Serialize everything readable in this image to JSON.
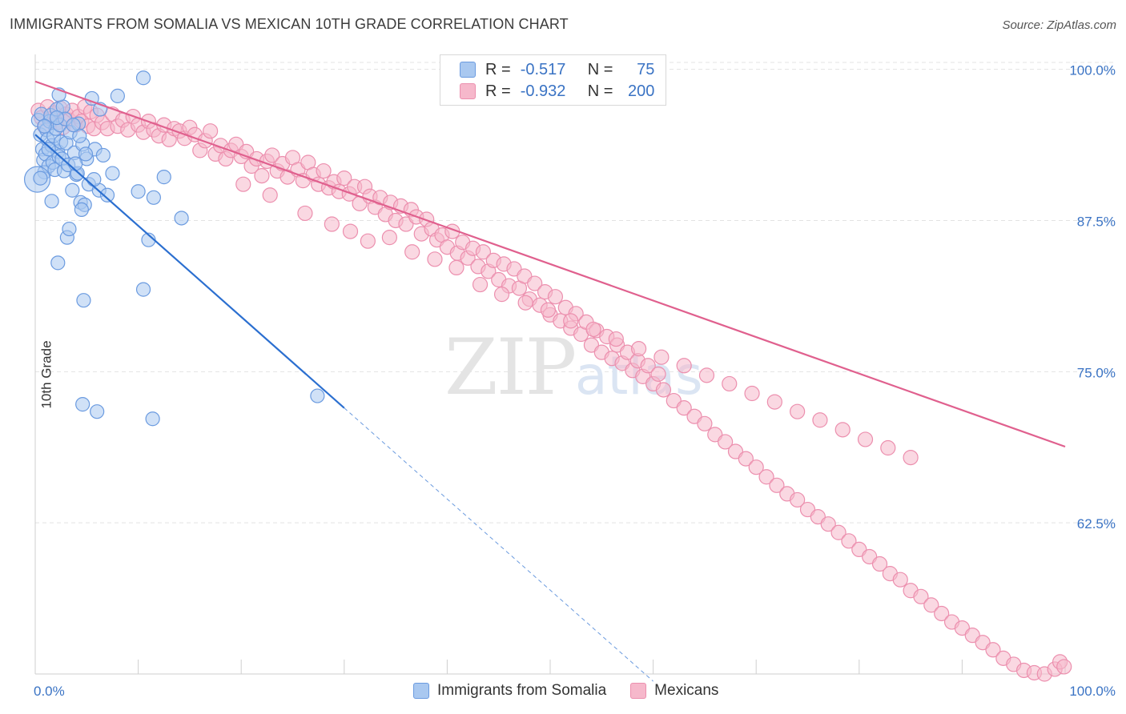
{
  "header": {
    "title": "IMMIGRANTS FROM SOMALIA VS MEXICAN 10TH GRADE CORRELATION CHART",
    "source": "Source: ZipAtlas.com"
  },
  "colors": {
    "blue_fill": "#a9c8f0",
    "blue_stroke": "#6b9be0",
    "blue_line": "#2b6fd0",
    "pink_fill": "#f6b8cb",
    "pink_stroke": "#ec8fae",
    "pink_line": "#e0608e",
    "grid": "#e3e3e3",
    "axis_text": "#3a73c4"
  },
  "legend": {
    "rows": [
      {
        "r_label": "R =",
        "r_value": "-0.517",
        "n_label": "N =",
        "n_value": "75"
      },
      {
        "r_label": "R =",
        "r_value": "-0.932",
        "n_label": "N =",
        "n_value": "200"
      }
    ]
  },
  "bottom_legend": {
    "series_1": "Immigrants from Somalia",
    "series_2": "Mexicans"
  },
  "watermark": {
    "zip": "ZIP",
    "atlas": "atlas"
  },
  "chart_data": {
    "type": "scatter",
    "title": "IMMIGRANTS FROM SOMALIA VS MEXICAN 10TH GRADE CORRELATION CHART",
    "xlabel": "",
    "ylabel": "10th Grade",
    "xlim": [
      0,
      100
    ],
    "ylim": [
      50,
      101.5
    ],
    "x_tick_labels": [
      "0.0%",
      "100.0%"
    ],
    "y_ticks": [
      100,
      87.5,
      75,
      62.5
    ],
    "y_tick_labels": [
      "100.0%",
      "87.5%",
      "75.0%",
      "62.5%"
    ],
    "series": [
      {
        "name": "Immigrants from Somalia",
        "R": -0.517,
        "N": 75,
        "trend": {
          "x0": 0,
          "y0": 94.6,
          "x1": 30,
          "y1": 72.0,
          "dashed_to_x": 60
        },
        "points": [
          [
            0.3,
            95.8
          ],
          [
            0.5,
            94.6
          ],
          [
            0.6,
            96.3
          ],
          [
            0.7,
            93.4
          ],
          [
            0.8,
            92.5
          ],
          [
            0.9,
            91.5
          ],
          [
            1.0,
            93.0
          ],
          [
            1.1,
            95.0
          ],
          [
            1.2,
            94.2
          ],
          [
            1.3,
            92.0
          ],
          [
            1.4,
            95.7
          ],
          [
            1.5,
            96.2
          ],
          [
            1.6,
            93.7
          ],
          [
            1.7,
            92.3
          ],
          [
            1.8,
            94.5
          ],
          [
            1.9,
            91.7
          ],
          [
            2.0,
            95.1
          ],
          [
            2.1,
            96.7
          ],
          [
            2.2,
            93.2
          ],
          [
            2.3,
            92.8
          ],
          [
            2.4,
            95.4
          ],
          [
            2.5,
            94.0
          ],
          [
            2.6,
            92.6
          ],
          [
            2.7,
            96.9
          ],
          [
            2.8,
            91.6
          ],
          [
            2.9,
            95.9
          ],
          [
            3.0,
            93.9
          ],
          [
            3.2,
            92.1
          ],
          [
            3.4,
            94.8
          ],
          [
            3.6,
            90.0
          ],
          [
            3.8,
            93.1
          ],
          [
            4.0,
            91.3
          ],
          [
            4.2,
            95.5
          ],
          [
            4.4,
            89.0
          ],
          [
            4.6,
            93.8
          ],
          [
            4.8,
            88.8
          ],
          [
            5.0,
            92.6
          ],
          [
            5.2,
            90.5
          ],
          [
            5.5,
            97.6
          ],
          [
            5.8,
            93.4
          ],
          [
            6.2,
            90.0
          ],
          [
            6.6,
            92.9
          ],
          [
            7.0,
            89.6
          ],
          [
            0.2,
            90.9
          ],
          [
            0.9,
            95.3
          ],
          [
            1.6,
            89.1
          ],
          [
            2.3,
            97.9
          ],
          [
            3.1,
            86.1
          ],
          [
            3.3,
            86.8
          ],
          [
            4.1,
            91.4
          ],
          [
            4.3,
            94.5
          ],
          [
            4.5,
            88.4
          ],
          [
            4.7,
            80.9
          ],
          [
            8.0,
            97.8
          ],
          [
            10.0,
            89.9
          ],
          [
            11.5,
            89.4
          ],
          [
            11.0,
            85.9
          ],
          [
            10.5,
            81.8
          ],
          [
            12.5,
            91.1
          ],
          [
            14.2,
            87.7
          ],
          [
            10.5,
            99.3
          ],
          [
            6.3,
            96.7
          ],
          [
            7.5,
            91.4
          ],
          [
            2.2,
            84.0
          ],
          [
            4.6,
            72.3
          ],
          [
            6.0,
            71.7
          ],
          [
            11.4,
            71.1
          ],
          [
            27.4,
            73.0
          ],
          [
            0.5,
            91.0
          ],
          [
            1.3,
            93.4
          ],
          [
            2.1,
            96.0
          ],
          [
            3.7,
            95.4
          ],
          [
            4.9,
            93.0
          ],
          [
            5.7,
            90.9
          ],
          [
            3.9,
            92.2
          ]
        ]
      },
      {
        "name": "Mexicans",
        "R": -0.932,
        "N": 200,
        "trend": {
          "x0": 0,
          "y0": 99.0,
          "x1": 100,
          "y1": 68.8
        },
        "points": [
          [
            0.3,
            96.6
          ],
          [
            0.6,
            96.0
          ],
          [
            0.9,
            95.3
          ],
          [
            1.2,
            96.9
          ],
          [
            1.5,
            95.9
          ],
          [
            1.8,
            96.4
          ],
          [
            2.1,
            95.6
          ],
          [
            2.4,
            96.8
          ],
          [
            2.7,
            95.2
          ],
          [
            3.0,
            96.3
          ],
          [
            3.3,
            95.8
          ],
          [
            3.6,
            96.6
          ],
          [
            3.9,
            95.4
          ],
          [
            4.2,
            96.1
          ],
          [
            4.5,
            95.7
          ],
          [
            4.8,
            96.9
          ],
          [
            5.1,
            95.3
          ],
          [
            5.4,
            96.5
          ],
          [
            5.7,
            95.1
          ],
          [
            6.0,
            96.2
          ],
          [
            6.5,
            95.6
          ],
          [
            7.0,
            95.1
          ],
          [
            7.5,
            96.3
          ],
          [
            8.0,
            95.3
          ],
          [
            8.5,
            95.8
          ],
          [
            9.0,
            95.0
          ],
          [
            9.5,
            96.1
          ],
          [
            10.0,
            95.4
          ],
          [
            10.5,
            94.8
          ],
          [
            11.0,
            95.7
          ],
          [
            11.5,
            95.0
          ],
          [
            12.0,
            94.5
          ],
          [
            12.5,
            95.4
          ],
          [
            13.0,
            94.2
          ],
          [
            13.5,
            95.1
          ],
          [
            14.0,
            94.9
          ],
          [
            14.5,
            94.3
          ],
          [
            15.0,
            95.2
          ],
          [
            15.5,
            94.6
          ],
          [
            16.0,
            93.3
          ],
          [
            16.5,
            94.1
          ],
          [
            17.0,
            94.9
          ],
          [
            17.5,
            93.0
          ],
          [
            18.0,
            93.7
          ],
          [
            18.5,
            92.6
          ],
          [
            19.0,
            93.3
          ],
          [
            19.5,
            93.8
          ],
          [
            20.0,
            92.8
          ],
          [
            20.5,
            93.2
          ],
          [
            21.0,
            92.0
          ],
          [
            21.5,
            92.6
          ],
          [
            22.0,
            91.2
          ],
          [
            22.5,
            92.4
          ],
          [
            23.0,
            92.9
          ],
          [
            23.5,
            91.6
          ],
          [
            24.0,
            92.2
          ],
          [
            24.5,
            91.1
          ],
          [
            25.0,
            92.7
          ],
          [
            25.5,
            91.7
          ],
          [
            26.0,
            90.8
          ],
          [
            26.5,
            92.3
          ],
          [
            27.0,
            91.3
          ],
          [
            27.5,
            90.5
          ],
          [
            28.0,
            91.6
          ],
          [
            28.5,
            90.2
          ],
          [
            29.0,
            90.7
          ],
          [
            29.5,
            89.9
          ],
          [
            30.0,
            91.0
          ],
          [
            30.5,
            89.7
          ],
          [
            31.0,
            90.3
          ],
          [
            31.5,
            88.9
          ],
          [
            32.0,
            90.3
          ],
          [
            32.5,
            89.5
          ],
          [
            33.0,
            88.6
          ],
          [
            33.5,
            89.4
          ],
          [
            34.0,
            88.0
          ],
          [
            34.5,
            89.0
          ],
          [
            35.0,
            87.5
          ],
          [
            35.5,
            88.7
          ],
          [
            36.0,
            87.2
          ],
          [
            36.5,
            88.4
          ],
          [
            37.0,
            87.8
          ],
          [
            37.5,
            86.4
          ],
          [
            38.0,
            87.6
          ],
          [
            38.5,
            86.8
          ],
          [
            39.0,
            85.9
          ],
          [
            39.5,
            86.3
          ],
          [
            40.0,
            85.3
          ],
          [
            40.5,
            86.6
          ],
          [
            41.0,
            84.8
          ],
          [
            41.5,
            85.7
          ],
          [
            42.0,
            84.4
          ],
          [
            42.5,
            85.2
          ],
          [
            43.0,
            83.7
          ],
          [
            43.5,
            84.9
          ],
          [
            44.0,
            83.3
          ],
          [
            44.5,
            84.2
          ],
          [
            45.0,
            82.6
          ],
          [
            45.5,
            83.9
          ],
          [
            46.0,
            82.1
          ],
          [
            46.5,
            83.5
          ],
          [
            47.0,
            81.9
          ],
          [
            47.5,
            82.9
          ],
          [
            48.0,
            81.0
          ],
          [
            48.5,
            82.3
          ],
          [
            49.0,
            80.5
          ],
          [
            49.5,
            81.6
          ],
          [
            50.0,
            79.7
          ],
          [
            50.5,
            81.2
          ],
          [
            51.0,
            79.2
          ],
          [
            51.5,
            80.3
          ],
          [
            52.0,
            78.6
          ],
          [
            52.5,
            79.8
          ],
          [
            53.0,
            78.1
          ],
          [
            53.5,
            79.1
          ],
          [
            54.0,
            77.2
          ],
          [
            54.5,
            78.4
          ],
          [
            55.0,
            76.6
          ],
          [
            55.5,
            77.9
          ],
          [
            56.0,
            76.1
          ],
          [
            56.5,
            77.2
          ],
          [
            57.0,
            75.7
          ],
          [
            57.5,
            76.6
          ],
          [
            58.0,
            75.1
          ],
          [
            58.5,
            75.9
          ],
          [
            59.0,
            74.6
          ],
          [
            59.5,
            75.5
          ],
          [
            60.0,
            74.0
          ],
          [
            60.5,
            74.8
          ],
          [
            61.0,
            73.5
          ],
          [
            62.0,
            72.6
          ],
          [
            63.0,
            72.0
          ],
          [
            64.0,
            71.3
          ],
          [
            65.0,
            70.7
          ],
          [
            66.0,
            69.8
          ],
          [
            67.0,
            69.2
          ],
          [
            68.0,
            68.4
          ],
          [
            69.0,
            67.8
          ],
          [
            70.0,
            67.1
          ],
          [
            71.0,
            66.3
          ],
          [
            72.0,
            65.6
          ],
          [
            73.0,
            64.9
          ],
          [
            74.0,
            64.4
          ],
          [
            75.0,
            63.6
          ],
          [
            76.0,
            63.0
          ],
          [
            77.0,
            62.4
          ],
          [
            78.0,
            61.7
          ],
          [
            79.0,
            61.0
          ],
          [
            80.0,
            60.3
          ],
          [
            81.0,
            59.7
          ],
          [
            82.0,
            59.1
          ],
          [
            83.0,
            58.3
          ],
          [
            84.0,
            57.8
          ],
          [
            85.0,
            56.9
          ],
          [
            86.0,
            56.4
          ],
          [
            87.0,
            55.7
          ],
          [
            88.0,
            55.0
          ],
          [
            89.0,
            54.3
          ],
          [
            90.0,
            53.8
          ],
          [
            91.0,
            53.2
          ],
          [
            92.0,
            52.6
          ],
          [
            93.0,
            52.0
          ],
          [
            94.0,
            51.3
          ],
          [
            95.0,
            50.8
          ],
          [
            96.0,
            50.3
          ],
          [
            97.0,
            50.1
          ],
          [
            98.0,
            50.0
          ],
          [
            99.0,
            50.4
          ],
          [
            99.5,
            51.0
          ],
          [
            99.9,
            50.6
          ],
          [
            20.2,
            90.5
          ],
          [
            22.8,
            89.6
          ],
          [
            26.2,
            88.1
          ],
          [
            28.8,
            87.2
          ],
          [
            30.6,
            86.6
          ],
          [
            32.3,
            85.8
          ],
          [
            34.4,
            86.1
          ],
          [
            36.6,
            84.9
          ],
          [
            38.8,
            84.3
          ],
          [
            40.9,
            83.6
          ],
          [
            43.2,
            82.2
          ],
          [
            45.3,
            81.4
          ],
          [
            47.6,
            80.7
          ],
          [
            49.8,
            80.1
          ],
          [
            52.0,
            79.2
          ],
          [
            54.2,
            78.5
          ],
          [
            56.4,
            77.7
          ],
          [
            58.6,
            76.9
          ],
          [
            60.8,
            76.2
          ],
          [
            63.0,
            75.5
          ],
          [
            65.2,
            74.7
          ],
          [
            67.4,
            74.0
          ],
          [
            69.6,
            73.2
          ],
          [
            71.8,
            72.5
          ],
          [
            74.0,
            71.7
          ],
          [
            76.2,
            71.0
          ],
          [
            78.4,
            70.2
          ],
          [
            80.6,
            69.4
          ],
          [
            82.8,
            68.7
          ],
          [
            85.0,
            67.9
          ]
        ]
      }
    ]
  }
}
